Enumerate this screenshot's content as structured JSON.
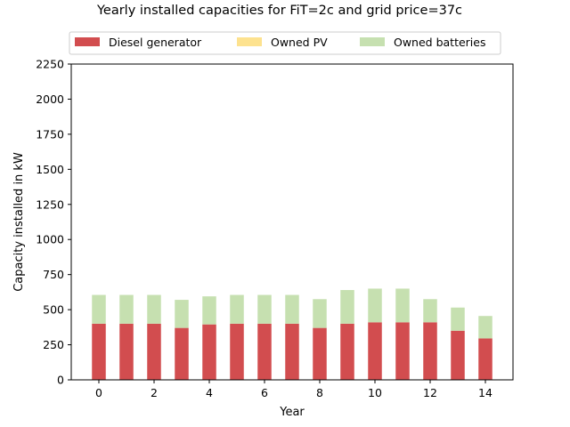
{
  "chart_data": {
    "type": "bar",
    "stacked": true,
    "title": "Yearly installed capacities for FiT=2c and grid price=37c",
    "xlabel": "Year",
    "ylabel": "Capacity installed in kW",
    "x": [
      0,
      1,
      2,
      3,
      4,
      5,
      6,
      7,
      8,
      9,
      10,
      11,
      12,
      13,
      14
    ],
    "xticks": [
      "0",
      "2",
      "4",
      "6",
      "8",
      "10",
      "12",
      "14"
    ],
    "yticks": [
      "0",
      "250",
      "500",
      "750",
      "1000",
      "1250",
      "1500",
      "1750",
      "2000",
      "2250"
    ],
    "xlim": [
      -1,
      15
    ],
    "ylim": [
      0,
      2250
    ],
    "grid": false,
    "legend_position": "top-center",
    "series": [
      {
        "name": "Diesel generator",
        "color": "#d24d4f",
        "values": [
          400,
          400,
          400,
          370,
          395,
          400,
          400,
          400,
          370,
          400,
          410,
          410,
          410,
          350,
          295
        ]
      },
      {
        "name": "Owned PV",
        "color": "#fde28f",
        "values": [
          0,
          0,
          0,
          0,
          0,
          0,
          0,
          0,
          0,
          0,
          0,
          0,
          0,
          0,
          0
        ]
      },
      {
        "name": "Owned batteries",
        "color": "#c6e0b0",
        "values": [
          205,
          205,
          205,
          200,
          200,
          205,
          205,
          205,
          205,
          240,
          240,
          240,
          165,
          165,
          160
        ]
      }
    ]
  }
}
